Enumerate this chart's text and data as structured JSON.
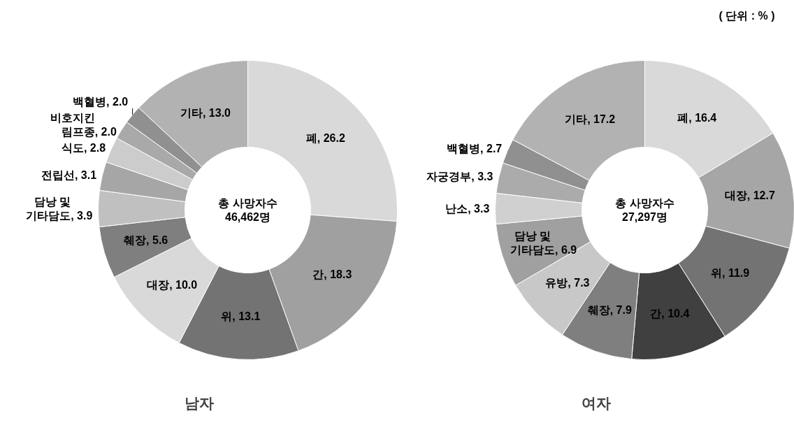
{
  "chart_data": [
    {
      "type": "donut",
      "title": "남자",
      "categories": [
        "폐",
        "간",
        "위",
        "대장",
        "췌장",
        "담낭 및\n기타담도",
        "전립선",
        "식도",
        "비호지킨\n림프종",
        "백혈병",
        "기타"
      ],
      "values": [
        26.2,
        18.3,
        13.1,
        10.0,
        5.6,
        3.9,
        3.1,
        2.8,
        2.0,
        2.0,
        13.0
      ],
      "value_labels": [
        ", 26.2",
        ", 18.3",
        ", 13.1",
        ", 10.0",
        ", 5.6",
        ", 3.9",
        ", 3.1",
        ", 2.8",
        ", 2.0",
        ", 2.0",
        ", 13.0"
      ],
      "colors": [
        "#d9d9d9",
        "#a0a0a0",
        "#737373",
        "#d9d9d9",
        "#7f7f7f",
        "#c0c0c0",
        "#a6a6a6",
        "#cccccc",
        "#a9a9a9",
        "#909090",
        "#b2b2b2"
      ],
      "annotations": [
        "총 사망자수\n46,462명"
      ]
    },
    {
      "type": "donut",
      "title": "여자",
      "subtitle": "( 단위 : % )",
      "categories": [
        "폐",
        "대장",
        "위",
        "간",
        "췌장",
        "유방",
        "담낭 및\n기타담도",
        "난소",
        "자궁경부",
        "백혈병",
        "기타"
      ],
      "values": [
        16.4,
        12.7,
        11.9,
        10.4,
        7.9,
        7.3,
        6.9,
        3.3,
        3.3,
        2.7,
        17.2
      ],
      "value_labels": [
        ", 16.4",
        ", 12.7",
        ", 11.9",
        ", 10.4",
        ", 7.9",
        ", 7.3",
        ", 6.9",
        ", 3.3",
        ", 3.3",
        ", 2.7",
        ", 17.2"
      ],
      "colors": [
        "#d9d9d9",
        "#a6a6a6",
        "#737373",
        "#404040",
        "#7f7f7f",
        "#c8c8c8",
        "#a0a0a0",
        "#d0d0d0",
        "#ababab",
        "#909090",
        "#b2b2b2"
      ],
      "annotations": [
        "총 사망자수\n27,297명"
      ]
    }
  ]
}
